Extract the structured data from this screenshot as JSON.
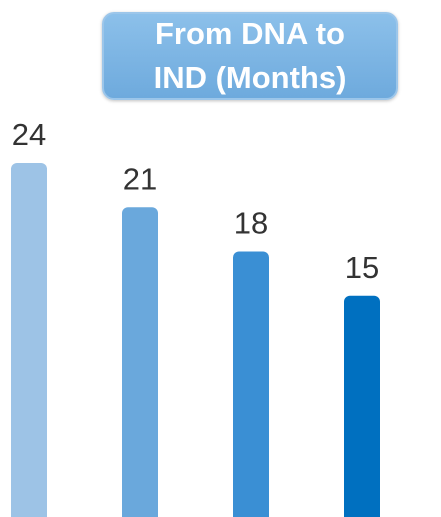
{
  "chart_data": {
    "type": "bar",
    "title": "From DNA to IND (Months)",
    "categories": [
      null,
      null,
      null,
      null
    ],
    "values": [
      24,
      21,
      18,
      15
    ],
    "colors": [
      "#9dc3e6",
      "#6aa8dc",
      "#3a8fd4",
      "#0070c0"
    ]
  }
}
